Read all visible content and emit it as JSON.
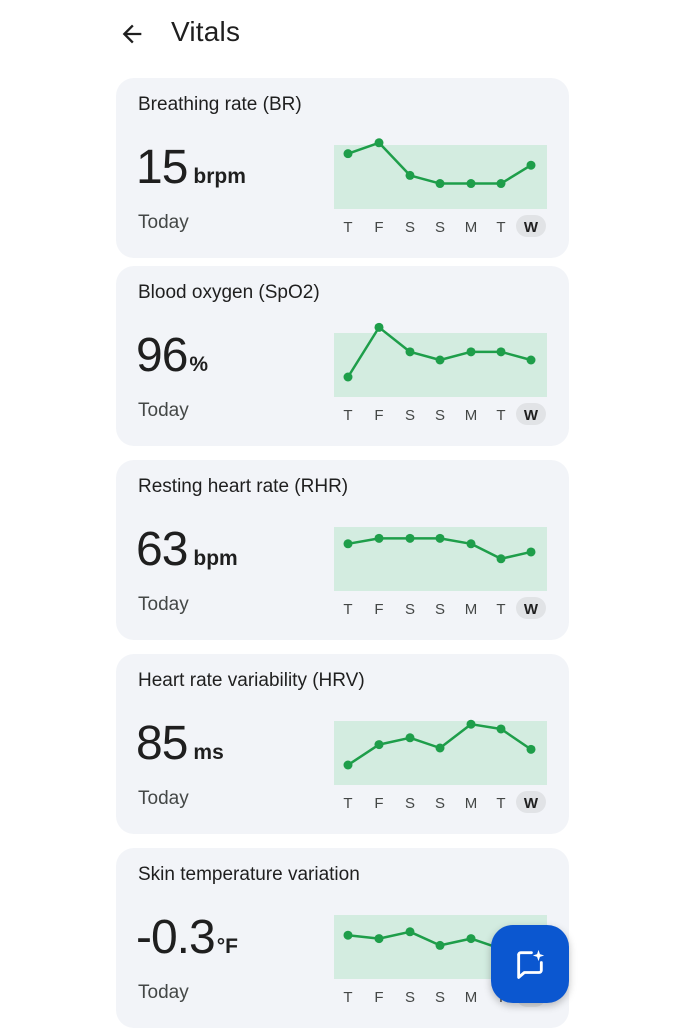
{
  "header": {
    "title": "Vitals",
    "back_icon": "arrow-left-icon"
  },
  "days": [
    "T",
    "F",
    "S",
    "S",
    "M",
    "T",
    "W"
  ],
  "colors": {
    "accent": "#1e9e4a",
    "chart_band": "#d3ece0",
    "card_bg": "#f2f4f8",
    "today_pill": "#e1e3e6",
    "fab": "#0b57d0"
  },
  "cards": [
    {
      "title": "Breathing rate (BR)",
      "value": "15",
      "unit": "brpm",
      "period": "Today",
      "chart_data": {
        "type": "line",
        "x": [
          "T",
          "F",
          "S",
          "S",
          "M",
          "T",
          "W"
        ],
        "values": [
          0.77,
          0.93,
          0.45,
          0.33,
          0.33,
          0.33,
          0.6
        ]
      }
    },
    {
      "title": "Blood oxygen (SpO2)",
      "value": "96",
      "unit": "%",
      "period": "Today",
      "chart_data": {
        "type": "line",
        "x": [
          "T",
          "F",
          "S",
          "S",
          "M",
          "T",
          "W"
        ],
        "values": [
          0.25,
          0.98,
          0.62,
          0.5,
          0.62,
          0.62,
          0.5
        ]
      }
    },
    {
      "title": "Resting heart rate (RHR)",
      "value": "63",
      "unit": "bpm",
      "period": "Today",
      "chart_data": {
        "type": "line",
        "x": [
          "T",
          "F",
          "S",
          "S",
          "M",
          "T",
          "W"
        ],
        "values": [
          0.65,
          0.73,
          0.73,
          0.73,
          0.65,
          0.43,
          0.53
        ]
      }
    },
    {
      "title": "Heart rate variability (HRV)",
      "value": "85",
      "unit": "ms",
      "period": "Today",
      "chart_data": {
        "type": "line",
        "x": [
          "T",
          "F",
          "S",
          "S",
          "M",
          "T",
          "W"
        ],
        "values": [
          0.25,
          0.55,
          0.65,
          0.5,
          0.85,
          0.78,
          0.48
        ]
      }
    },
    {
      "title": "Skin temperature variation",
      "value": "-0.3",
      "unit": "°F",
      "period": "Today",
      "chart_data": {
        "type": "line",
        "x": [
          "T",
          "F",
          "S",
          "S",
          "M",
          "T",
          "W"
        ],
        "values": [
          0.6,
          0.55,
          0.65,
          0.45,
          0.55,
          0.4,
          0.4
        ]
      }
    }
  ],
  "fab": {
    "icon": "chat-sparkle-icon"
  }
}
